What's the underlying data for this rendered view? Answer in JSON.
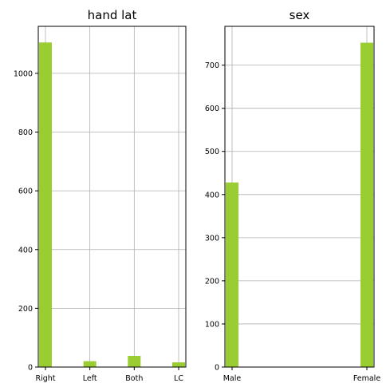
{
  "chart_data": [
    {
      "type": "bar",
      "title": "hand lat",
      "categories": [
        "Right",
        "Left",
        "Both",
        "LC"
      ],
      "values": [
        1105,
        20,
        38,
        16
      ],
      "ylim": [
        0,
        1160
      ],
      "yticks": [
        0,
        200,
        400,
        600,
        800,
        1000
      ],
      "xlabel": "",
      "ylabel": "",
      "grid": true,
      "color": "#9acd32"
    },
    {
      "type": "bar",
      "title": "sex",
      "categories": [
        "Male",
        "Female"
      ],
      "values": [
        428,
        752
      ],
      "ylim": [
        0,
        790
      ],
      "yticks": [
        0,
        100,
        200,
        300,
        400,
        500,
        600,
        700
      ],
      "xlabel": "",
      "ylabel": "",
      "grid": true,
      "color": "#9acd32"
    }
  ]
}
